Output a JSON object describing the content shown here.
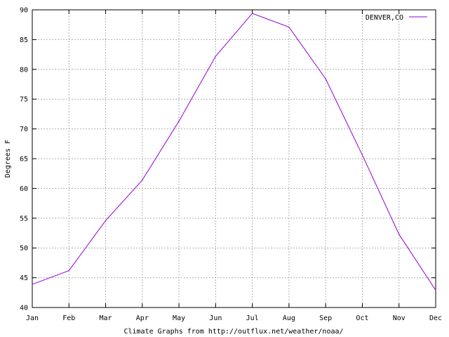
{
  "chart_data": {
    "type": "line",
    "categories": [
      "Jan",
      "Feb",
      "Mar",
      "Apr",
      "May",
      "Jun",
      "Jul",
      "Aug",
      "Sep",
      "Oct",
      "Nov",
      "Dec"
    ],
    "series": [
      {
        "name": "DENVER,CO",
        "color": "#9400d3",
        "values": [
          43.9,
          46.2,
          54.6,
          61.4,
          71.3,
          82.2,
          89.4,
          87.1,
          78.4,
          65.6,
          52.3,
          42.9
        ]
      }
    ],
    "ylim": [
      40,
      90
    ],
    "yticks": [
      40,
      45,
      50,
      55,
      60,
      65,
      70,
      75,
      80,
      85,
      90
    ],
    "ylabel": "Degrees F",
    "xlabel": "Climate Graphs from http://outflux.net/weather/noaa/",
    "title": "",
    "grid": true,
    "legend_position": "top-right"
  }
}
